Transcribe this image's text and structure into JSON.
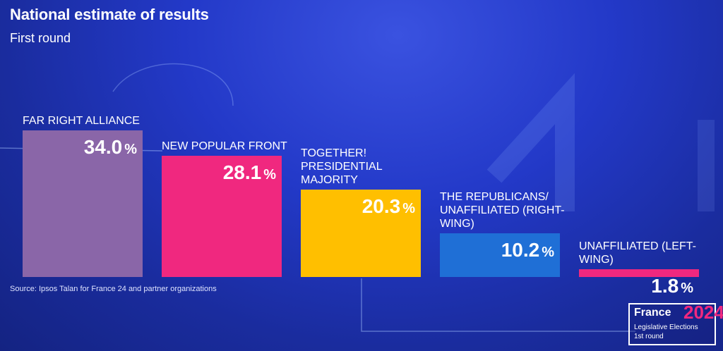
{
  "header": {
    "title": "National estimate of results",
    "subtitle": "First round"
  },
  "footer": {
    "source": "Source: Ipsos Talan for France 24 and partner organizations"
  },
  "logo": {
    "brand": "France",
    "year": "2024",
    "line1": "Legislative Elections",
    "line2": "1st round"
  },
  "chart_data": {
    "type": "bar",
    "title": "National estimate of results",
    "subtitle": "First round",
    "unit": "%",
    "categories": [
      "FAR RIGHT ALLIANCE",
      "NEW POPULAR FRONT",
      "TOGETHER! PRESIDENTIAL MAJORITY",
      "THE REPUBLICANS/ UNAFFILIATED (RIGHT-WING)",
      "UNAFFILIATED (LEFT-WING)"
    ],
    "values": [
      34.0,
      28.1,
      20.3,
      10.2,
      1.8
    ],
    "value_labels": [
      "34.0",
      "28.1",
      "20.3",
      "10.2",
      "1.8"
    ],
    "colors": [
      "#8a66a8",
      "#f0287f",
      "#ffbf00",
      "#1f6fd6",
      "#f0287f"
    ],
    "ylim": [
      0,
      34.0
    ],
    "grid": false,
    "legend": "none"
  }
}
